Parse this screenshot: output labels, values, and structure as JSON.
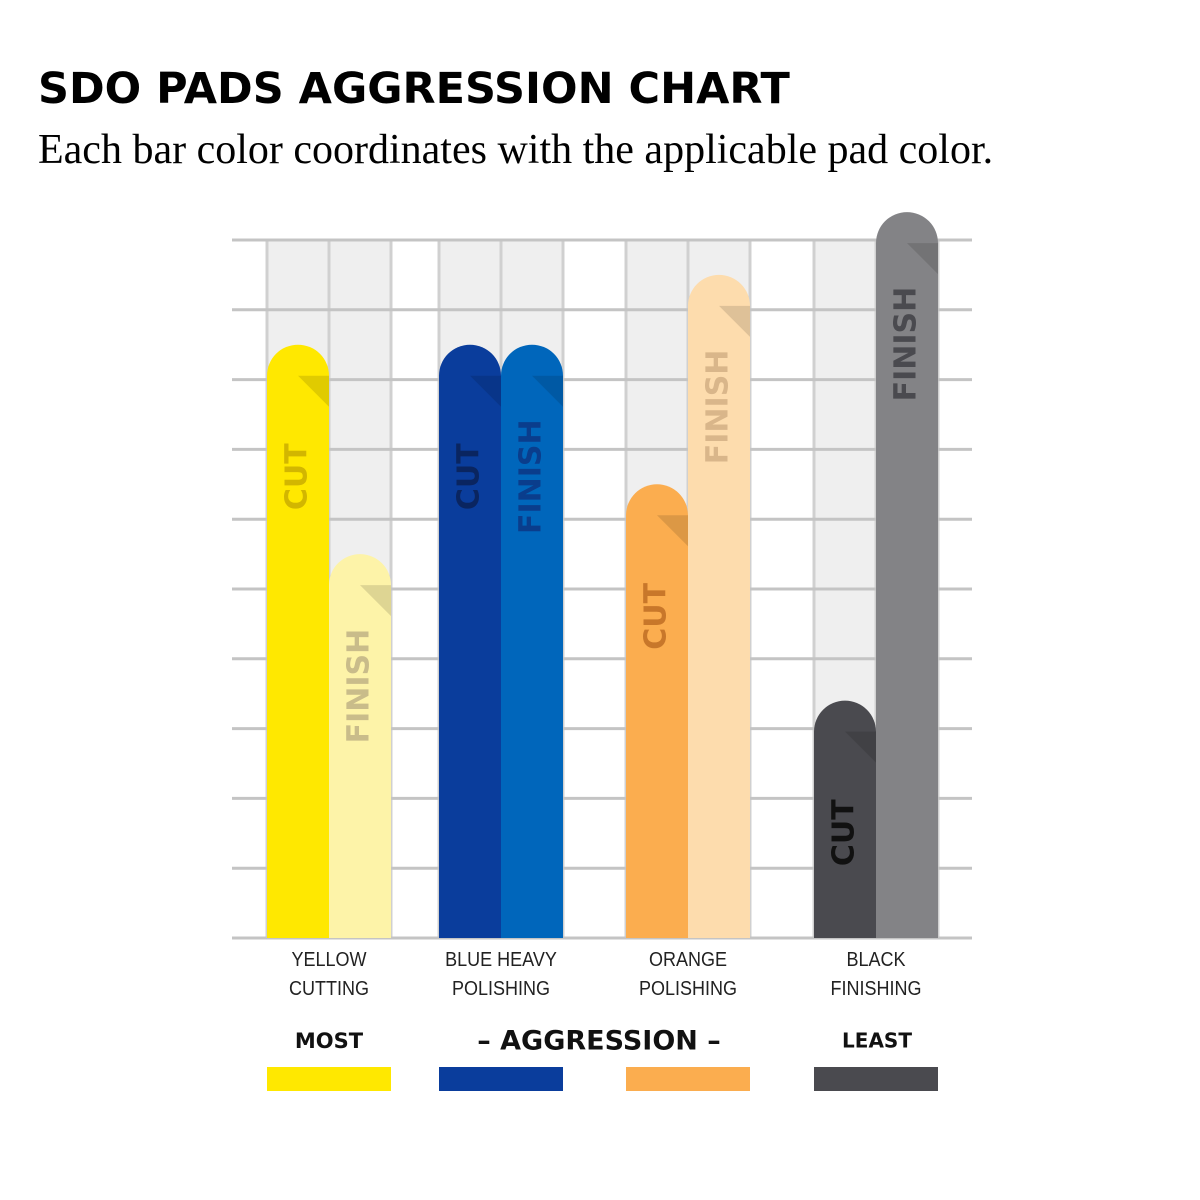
{
  "chart_data": {
    "type": "bar",
    "title": "SDO PADS AGGRESSION CHART",
    "subtitle": "Each bar color coordinates with the applicable pad color.",
    "categories": [
      "YELLOW CUTTING",
      "BLUE HEAVY POLISHING",
      "ORANGE POLISHING",
      "BLACK FINISHING"
    ],
    "series": [
      {
        "name": "CUT",
        "values": [
          8.5,
          8.5,
          6.5,
          3.4
        ],
        "colors": [
          "#ffe800",
          "#0a3d9c",
          "#fbad4f",
          "#4a4a4f"
        ],
        "label_colors": [
          "#d2b600",
          "#0a2560",
          "#c8772a",
          "#111111"
        ]
      },
      {
        "name": "FINISH",
        "values": [
          5.5,
          8.5,
          9.5,
          10.4
        ],
        "colors": [
          "#fdf3a8",
          "#0066bb",
          "#fddcad",
          "#838386"
        ],
        "label_colors": [
          "#c9bc8a",
          "#0a3d8c",
          "#d9b68a",
          "#4a4a4f"
        ]
      }
    ],
    "ylim": [
      0,
      10
    ],
    "yticks": [
      0,
      1,
      2,
      3,
      4,
      5,
      6,
      7,
      8,
      9,
      10
    ],
    "tick_labels": false,
    "grid": true,
    "scale_labels": {
      "most": "MOST",
      "middle": "– AGGRESSION –",
      "least": "LEAST"
    },
    "swatch_colors": [
      "#ffe800",
      "#0a3d9c",
      "#fbad4f",
      "#4a4a4f"
    ]
  }
}
